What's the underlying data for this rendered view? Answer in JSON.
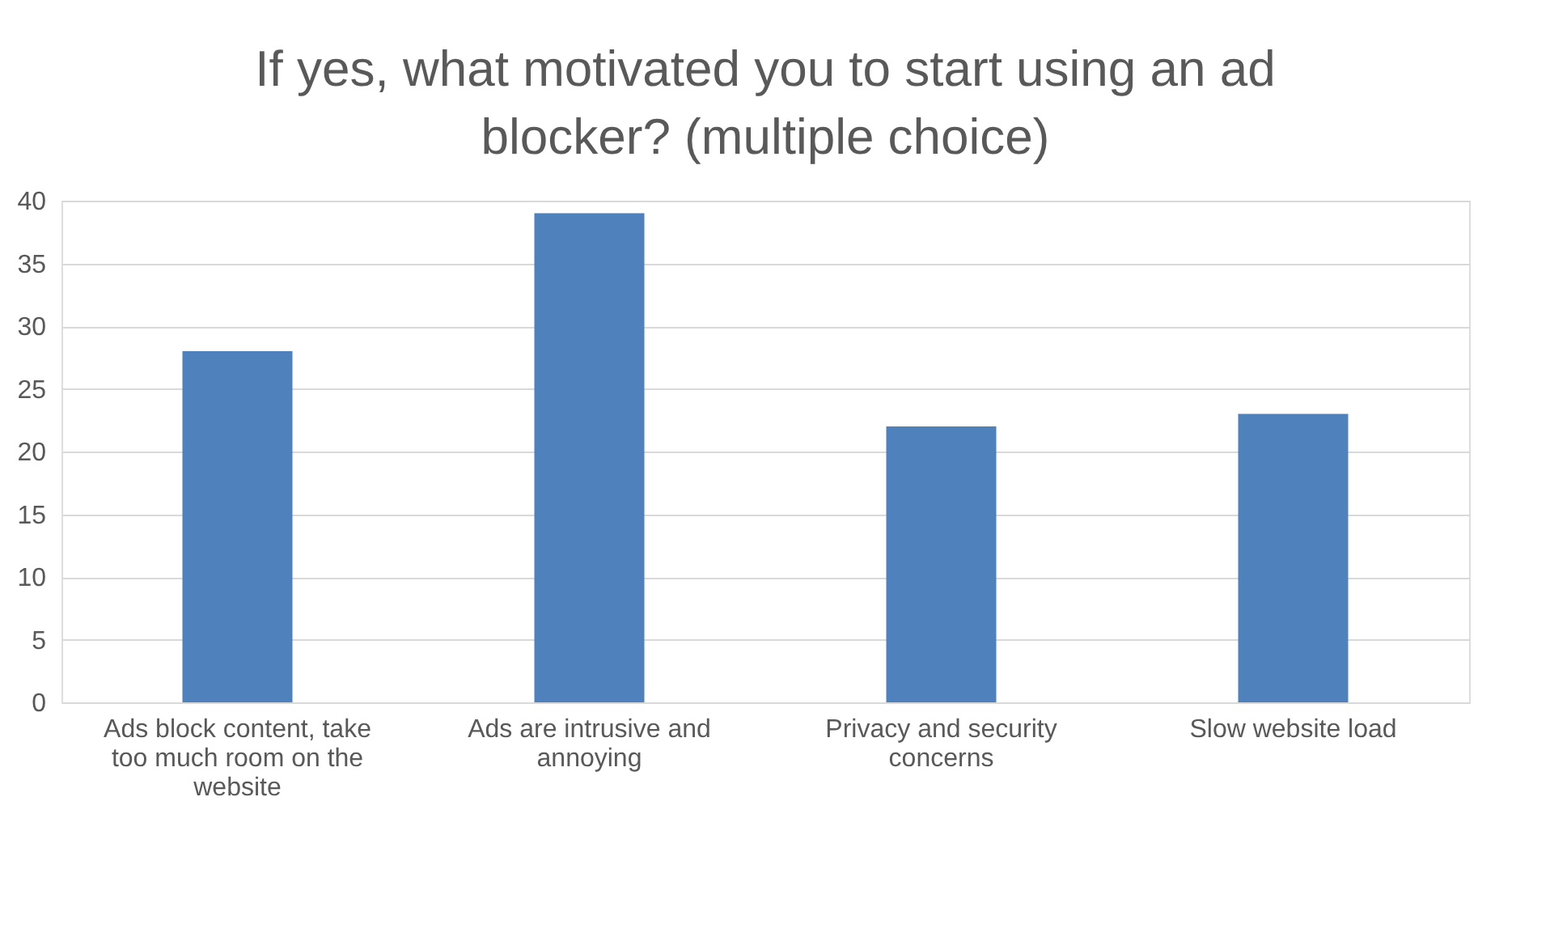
{
  "chart_data": {
    "type": "bar",
    "title": "If yes, what motivated you to start using an ad blocker? (multiple choice)",
    "categories": [
      "Ads block content, take too much room on the website",
      "Ads are intrusive and annoying",
      "Privacy and security concerns",
      "Slow website load"
    ],
    "values": [
      28,
      39,
      22,
      23
    ],
    "color": "#4f81bd",
    "ylim": [
      0,
      40
    ],
    "yticks": [
      0,
      5,
      10,
      15,
      20,
      25,
      30,
      35,
      40
    ],
    "grid": "y"
  }
}
